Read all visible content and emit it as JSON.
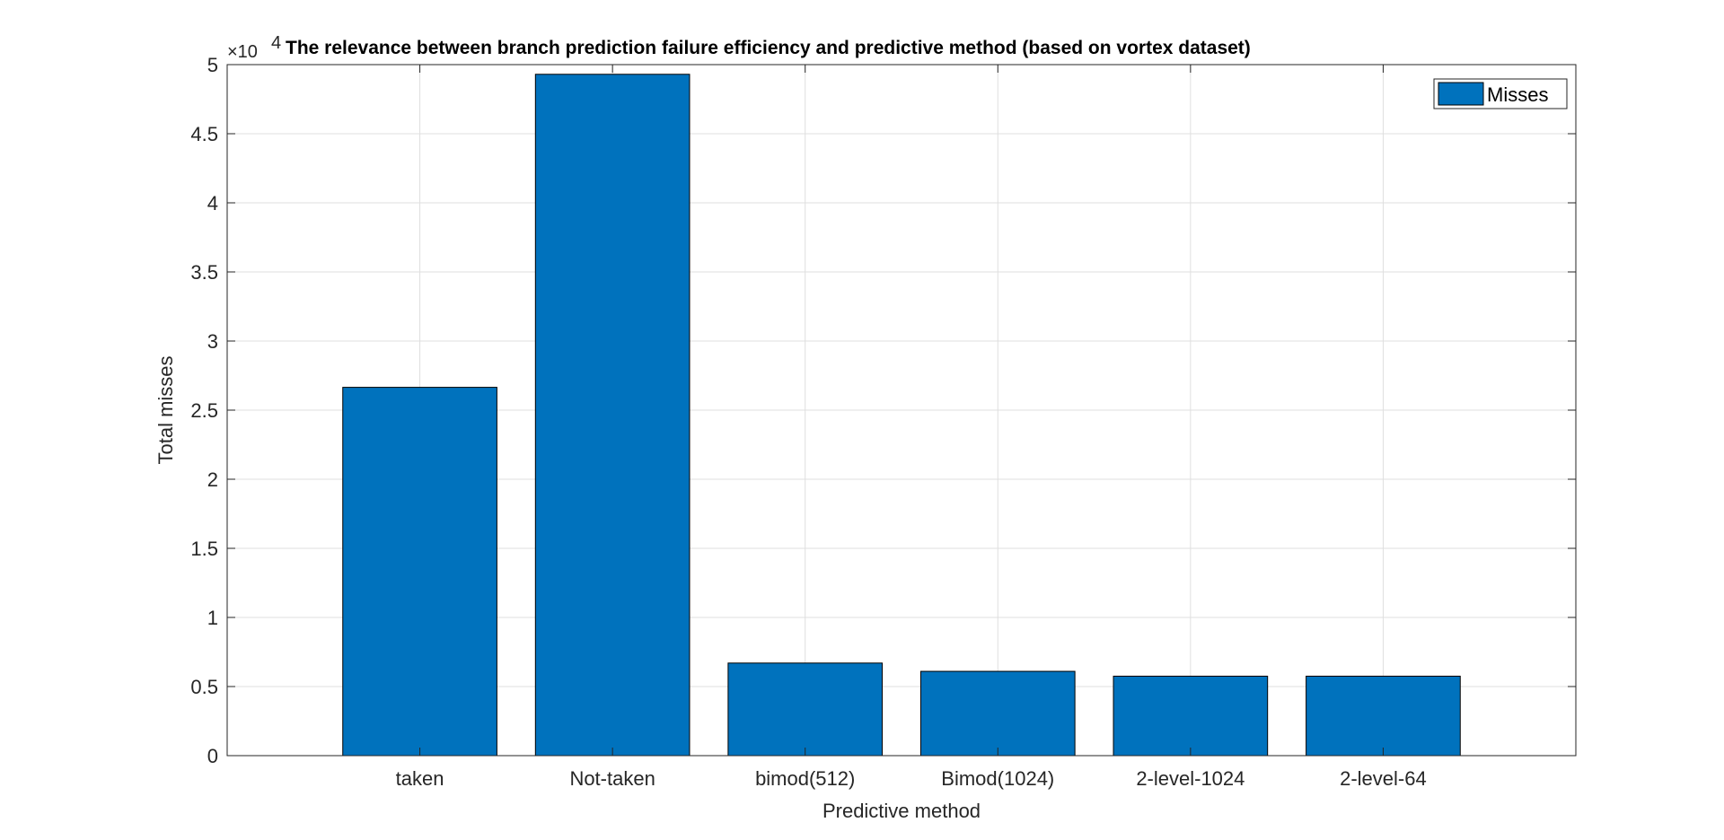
{
  "chart_data": {
    "type": "bar",
    "title": "The relevance between branch prediction failure efficiency and predictive method (based on vortex dataset)",
    "xlabel": "Predictive method",
    "ylabel": "Total misses",
    "categories": [
      "taken",
      "Not-taken",
      "bimod(512)",
      "Bimod(1024)",
      "2-level-1024",
      "2-level-64"
    ],
    "series": [
      {
        "name": "Misses",
        "values": [
          26650,
          49300,
          6700,
          6100,
          5750,
          5750
        ]
      }
    ],
    "x_tick_positions": [
      1,
      2,
      3,
      4,
      5,
      6
    ],
    "xlim": [
      0,
      7
    ],
    "ylim": [
      0,
      50000
    ],
    "y_ticks": [
      0,
      5000,
      10000,
      15000,
      20000,
      25000,
      30000,
      35000,
      40000,
      45000,
      50000
    ],
    "y_tick_labels": [
      "0",
      "0.5",
      "1",
      "1.5",
      "2",
      "2.5",
      "3",
      "3.5",
      "4",
      "4.5",
      "5"
    ],
    "y_exponent_base": "×10",
    "y_exponent_power": "4",
    "grid": true,
    "legend_position": "top-right",
    "bar_color": "#0072BD"
  }
}
